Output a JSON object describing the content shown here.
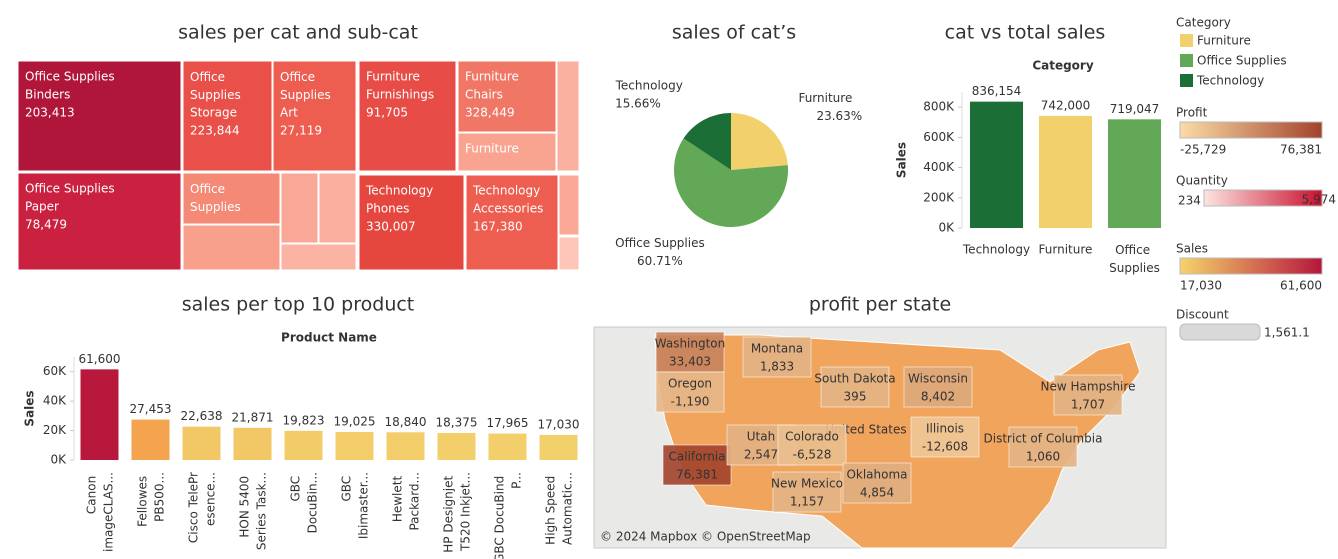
{
  "chart_data": [
    {
      "type": "treemap",
      "title": "sales per cat and sub-cat",
      "items": [
        {
          "category": "Office Supplies",
          "subcategory": "Binders",
          "value": 203413,
          "value_label": "203,413",
          "color": "#b0163a"
        },
        {
          "category": "Office Supplies",
          "subcategory": "Paper",
          "value": 78479,
          "value_label": "78,479",
          "color": "#c9213f"
        },
        {
          "category": "Office Supplies",
          "subcategory": "Storage",
          "value": 223844,
          "value_label": "223,844",
          "color": "#e9504a"
        },
        {
          "category": "Office Supplies",
          "subcategory": "Art",
          "value": 27119,
          "value_label": "27,119",
          "color": "#ee5e50"
        },
        {
          "category": "Office Supplies",
          "color": "#f48a75"
        },
        {
          "category": "Furniture",
          "subcategory": "Furnishings",
          "value": 91705,
          "value_label": "91,705",
          "color": "#e74c47"
        },
        {
          "category": "Furniture",
          "subcategory": "Chairs",
          "value": 328449,
          "value_label": "328,449",
          "color": "#f07765"
        },
        {
          "category": "Furniture",
          "color": "#f9a391"
        },
        {
          "category": "Technology",
          "subcategory": "Phones",
          "value": 330007,
          "value_label": "330,007",
          "color": "#e5473f"
        },
        {
          "category": "Technology",
          "subcategory": "Accessories",
          "value": 167380,
          "value_label": "167,380",
          "color": "#ed5e50"
        }
      ]
    },
    {
      "type": "pie",
      "title": "sales of cat’s",
      "categories": [
        "Furniture",
        "Office Supplies",
        "Technology"
      ],
      "values": [
        23.63,
        60.71,
        15.66
      ],
      "value_labels": [
        "23.63%",
        "60.71%",
        "15.66%"
      ],
      "colors": [
        "#f2d06b",
        "#63a856",
        "#1b6e36"
      ]
    },
    {
      "type": "bar",
      "title": "cat vs total sales",
      "header": "Category",
      "y_label": "Sales",
      "categories": [
        "Technology",
        "Furniture",
        "Office Supplies"
      ],
      "values": [
        836154,
        742000,
        719047
      ],
      "value_labels": [
        "836,154",
        "742,000",
        "719,047"
      ],
      "colors": [
        "#1b6e36",
        "#f2d06b",
        "#63a856"
      ],
      "ylim": [
        0,
        900000
      ],
      "yticks": [
        {
          "value": 0,
          "label": "0K"
        },
        {
          "value": 200000,
          "label": "200K"
        },
        {
          "value": 400000,
          "label": "400K"
        },
        {
          "value": 600000,
          "label": "600K"
        },
        {
          "value": 800000,
          "label": "800K"
        }
      ]
    },
    {
      "type": "bar",
      "title": "sales per top 10 product",
      "header": "Product Name",
      "y_label": "Sales",
      "categories": [
        "Canon imageCLAS...",
        "Fellowes PB500...",
        "Cisco TelePresence...",
        "HON 5400 Series Task...",
        "GBC DocuBin...",
        "GBC Ibimaster...",
        "Hewlett Packard...",
        "HP Designjet T520 Inkjet...",
        "GBC DocuBind P...",
        "High Speed Automatic..."
      ],
      "values": [
        61600,
        27453,
        22638,
        21871,
        19823,
        19025,
        18840,
        18375,
        17965,
        17030
      ],
      "value_labels": [
        "61,600",
        "27,453",
        "22,638",
        "21,871",
        "19,823",
        "19,025",
        "18,840",
        "18,375",
        "17,965",
        "17,030"
      ],
      "colors": [
        "#b8183c",
        "#f4a34f",
        "#f2c766",
        "#f2c866",
        "#f2cc68",
        "#f2cd69",
        "#f2cd69",
        "#f2cf6a",
        "#f2cf6a",
        "#f2d06b"
      ],
      "ylim": [
        0,
        70000
      ],
      "yticks": [
        {
          "value": 0,
          "label": "0K"
        },
        {
          "value": 20000,
          "label": "20K"
        },
        {
          "value": 40000,
          "label": "40K"
        },
        {
          "value": 60000,
          "label": "60K"
        }
      ],
      "rotate_labels": true
    },
    {
      "type": "map",
      "title": "profit per state",
      "background_label": "United States",
      "attribution": "© 2024 Mapbox © OpenStreetMap",
      "states": [
        {
          "name": "Washington",
          "value": 33403,
          "value_label": "33,403"
        },
        {
          "name": "Oregon",
          "value": -1190,
          "value_label": "-1,190"
        },
        {
          "name": "California",
          "value": 76381,
          "value_label": "76,381"
        },
        {
          "name": "Montana",
          "value": 1833,
          "value_label": "1,833"
        },
        {
          "name": "Utah",
          "value": 2547,
          "value_label": "2,547"
        },
        {
          "name": "Colorado",
          "value": -6528,
          "value_label": "-6,528"
        },
        {
          "name": "New Mexico",
          "value": 1157,
          "value_label": "1,157"
        },
        {
          "name": "South Dakota",
          "value": 395,
          "value_label": "395"
        },
        {
          "name": "Oklahoma",
          "value": 4854,
          "value_label": "4,854"
        },
        {
          "name": "Wisconsin",
          "value": 8402,
          "value_label": "8,402"
        },
        {
          "name": "Illinois",
          "value": -12608,
          "value_label": "-12,608"
        },
        {
          "name": "New Hampshire",
          "value": 1707,
          "value_label": "1,707"
        },
        {
          "name": "District of Columbia",
          "value": 1060,
          "value_label": "1,060"
        }
      ]
    }
  ],
  "legends": {
    "category": {
      "title": "Category",
      "items": [
        {
          "name": "Furniture",
          "color": "#f2d06b"
        },
        {
          "name": "Office Supplies",
          "color": "#63a856"
        },
        {
          "name": "Technology",
          "color": "#1b6e36"
        }
      ]
    },
    "profit": {
      "title": "Profit",
      "min": {
        "value": -25729,
        "label": "-25,729"
      },
      "max": {
        "value": 76381,
        "label": "76,381"
      },
      "colors": [
        "#fbdca6",
        "#a3432c"
      ]
    },
    "quantity": {
      "title": "Quantity",
      "min": {
        "value": 234,
        "label": "234"
      },
      "max": {
        "value": 5974,
        "label": "5,974"
      },
      "colors": [
        "#fde4e0",
        "#c8102e"
      ]
    },
    "sales": {
      "title": "Sales",
      "min": {
        "value": 17030,
        "label": "17,030"
      },
      "max": {
        "value": 61600,
        "label": "61,600"
      },
      "colors": [
        "#f6d36b",
        "#b5163c"
      ]
    },
    "discount": {
      "title": "Discount",
      "value": {
        "value": 1561.1,
        "label": "1,561.1"
      },
      "color": "#d9d9d9"
    }
  }
}
